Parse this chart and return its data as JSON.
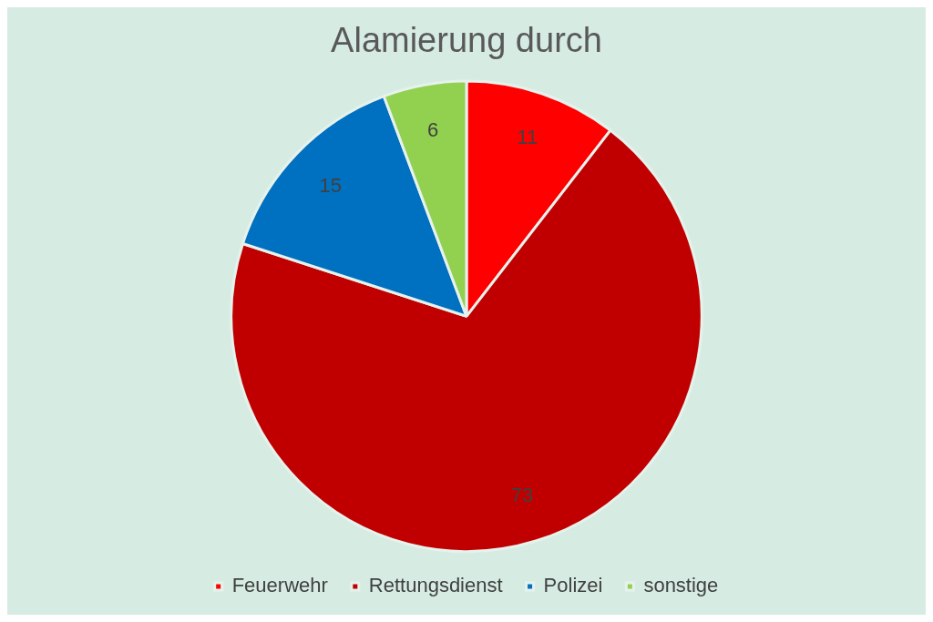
{
  "chart_data": {
    "type": "pie",
    "title": "Alamierung durch",
    "categories": [
      "Feuerwehr",
      "Rettungsdienst",
      "Polizei",
      "sonstige"
    ],
    "values": [
      11,
      73,
      15,
      6
    ],
    "colors": [
      "#ff0000",
      "#c00000",
      "#0070c0",
      "#92d050"
    ],
    "data_labels": true,
    "legend": "bottom"
  }
}
